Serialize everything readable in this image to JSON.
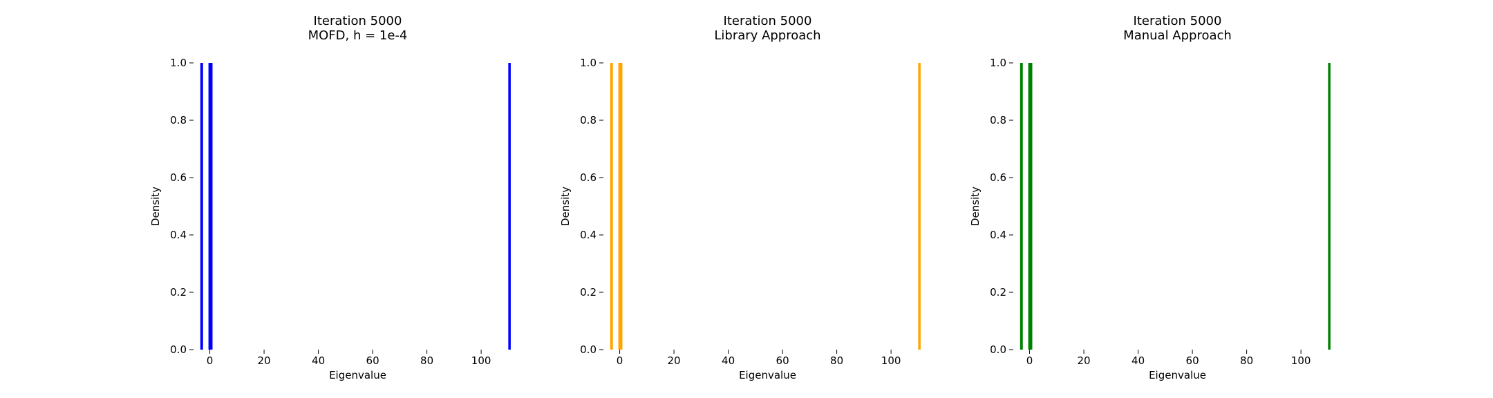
{
  "chart_data": [
    {
      "type": "bar",
      "title": "Iteration 5000",
      "subtitle": "MOFD, h = 1e-4",
      "xlabel": "Eigenvalue",
      "ylabel": "Density",
      "color": "#0000ff",
      "xlim": [
        -6,
        115
      ],
      "ylim": [
        0,
        1.0
      ],
      "xticks": [
        0,
        20,
        40,
        60,
        80,
        100
      ],
      "yticks": [
        0.0,
        0.2,
        0.4,
        0.6,
        0.8,
        1.0
      ],
      "xtick_labels": [
        "0",
        "20",
        "40",
        "60",
        "80",
        "100"
      ],
      "ytick_labels": [
        "0.0",
        "0.2",
        "0.4",
        "0.6",
        "0.8",
        "1.0"
      ],
      "grid": false,
      "bars": [
        {
          "x": -3.5,
          "width": 1.0,
          "height": 1.0
        },
        {
          "x": -0.5,
          "width": 1.5,
          "height": 1.0
        },
        {
          "x": 110.0,
          "width": 0.9,
          "height": 1.0
        }
      ]
    },
    {
      "type": "bar",
      "title": "Iteration 5000",
      "subtitle": "Library Approach",
      "xlabel": "Eigenvalue",
      "ylabel": "Density",
      "color": "#ffa500",
      "xlim": [
        -6,
        115
      ],
      "ylim": [
        0,
        1.0
      ],
      "xticks": [
        0,
        20,
        40,
        60,
        80,
        100
      ],
      "yticks": [
        0.0,
        0.2,
        0.4,
        0.6,
        0.8,
        1.0
      ],
      "xtick_labels": [
        "0",
        "20",
        "40",
        "60",
        "80",
        "100"
      ],
      "ytick_labels": [
        "0.0",
        "0.2",
        "0.4",
        "0.6",
        "0.8",
        "1.0"
      ],
      "grid": false,
      "bars": [
        {
          "x": -3.5,
          "width": 1.0,
          "height": 1.0
        },
        {
          "x": -0.5,
          "width": 1.5,
          "height": 1.0
        },
        {
          "x": 110.0,
          "width": 0.9,
          "height": 1.0
        }
      ]
    },
    {
      "type": "bar",
      "title": "Iteration 5000",
      "subtitle": "Manual Approach",
      "xlabel": "Eigenvalue",
      "ylabel": "Density",
      "color": "#008000",
      "xlim": [
        -6,
        115
      ],
      "ylim": [
        0,
        1.0
      ],
      "xticks": [
        0,
        20,
        40,
        60,
        80,
        100
      ],
      "yticks": [
        0.0,
        0.2,
        0.4,
        0.6,
        0.8,
        1.0
      ],
      "xtick_labels": [
        "0",
        "20",
        "40",
        "60",
        "80",
        "100"
      ],
      "ytick_labels": [
        "0.0",
        "0.2",
        "0.4",
        "0.6",
        "0.8",
        "1.0"
      ],
      "grid": false,
      "bars": [
        {
          "x": -3.5,
          "width": 1.0,
          "height": 1.0
        },
        {
          "x": -0.5,
          "width": 1.5,
          "height": 1.0
        },
        {
          "x": 110.0,
          "width": 0.9,
          "height": 1.0
        }
      ]
    }
  ]
}
